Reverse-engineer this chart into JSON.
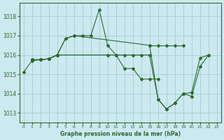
{
  "title": "Graphe pression niveau de la mer (hPa)",
  "background_color": "#cce9f0",
  "line_color": "#2d6a2d",
  "grid_color": "#aacfdb",
  "xlim": [
    -0.5,
    23.5
  ],
  "ylim": [
    1012.5,
    1018.7
  ],
  "yticks": [
    1013,
    1014,
    1015,
    1016,
    1017,
    1018
  ],
  "xticks": [
    0,
    1,
    2,
    3,
    4,
    5,
    6,
    7,
    8,
    9,
    10,
    11,
    12,
    13,
    14,
    15,
    16,
    17,
    18,
    19,
    20,
    21,
    22,
    23
  ],
  "series": [
    {
      "x": [
        0,
        1,
        2,
        3,
        4,
        5,
        6,
        7,
        8,
        9,
        10,
        11,
        12,
        13,
        14,
        15,
        16
      ],
      "y": [
        1015.1,
        1015.7,
        1015.75,
        1015.8,
        1016.0,
        1016.85,
        1017.0,
        1017.0,
        1017.0,
        1018.35,
        1016.5,
        1016.0,
        1015.3,
        1015.3,
        1014.75,
        1014.75,
        1014.75
      ]
    },
    {
      "x": [
        1,
        2,
        3,
        4,
        10,
        11,
        12,
        13,
        14
      ],
      "y": [
        1015.75,
        1015.75,
        1015.8,
        1016.0,
        1016.0,
        1016.0,
        1016.0,
        1016.0,
        1016.0
      ]
    },
    {
      "x": [
        1,
        2,
        3,
        4,
        5,
        6,
        15,
        16,
        17,
        18,
        19,
        20,
        21,
        22
      ],
      "y": [
        1015.75,
        1015.75,
        1015.8,
        1016.0,
        1016.85,
        1017.0,
        1016.5,
        1013.7,
        1013.2,
        1013.5,
        1014.0,
        1013.85,
        1015.4,
        1016.0
      ]
    },
    {
      "x": [
        1,
        2,
        3,
        4,
        15,
        16,
        17,
        18,
        19,
        20,
        21,
        22
      ],
      "y": [
        1015.75,
        1015.75,
        1015.8,
        1016.0,
        1016.0,
        1013.7,
        1013.2,
        1013.5,
        1014.0,
        1014.05,
        1015.85,
        1016.0
      ]
    },
    {
      "x": [
        15,
        16,
        17,
        18,
        19
      ],
      "y": [
        1016.5,
        1016.5,
        1016.5,
        1016.5,
        1016.5
      ]
    }
  ]
}
